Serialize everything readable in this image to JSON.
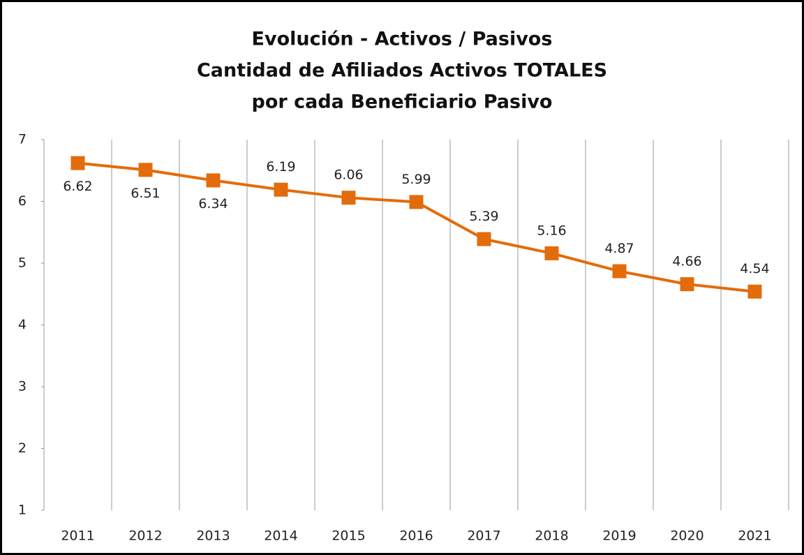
{
  "chart_data": {
    "type": "line",
    "title": [
      "Evolución - Activos / Pasivos",
      "Cantidad de Afiliados Activos TOTALES",
      "por cada Beneficiario Pasivo"
    ],
    "categories": [
      "2011",
      "2012",
      "2013",
      "2014",
      "2015",
      "2016",
      "2017",
      "2018",
      "2019",
      "2020",
      "2021"
    ],
    "values": [
      6.62,
      6.51,
      6.34,
      6.19,
      6.06,
      5.99,
      5.39,
      5.16,
      4.87,
      4.66,
      4.54
    ],
    "value_label_positions": [
      "below",
      "below",
      "below",
      "above",
      "above",
      "above",
      "above",
      "above",
      "above",
      "above",
      "above"
    ],
    "color": "#e36c0a",
    "marker": "square",
    "ylim": [
      1,
      7
    ],
    "yticks": [
      1,
      2,
      3,
      4,
      5,
      6,
      7
    ],
    "category_separators": true
  }
}
